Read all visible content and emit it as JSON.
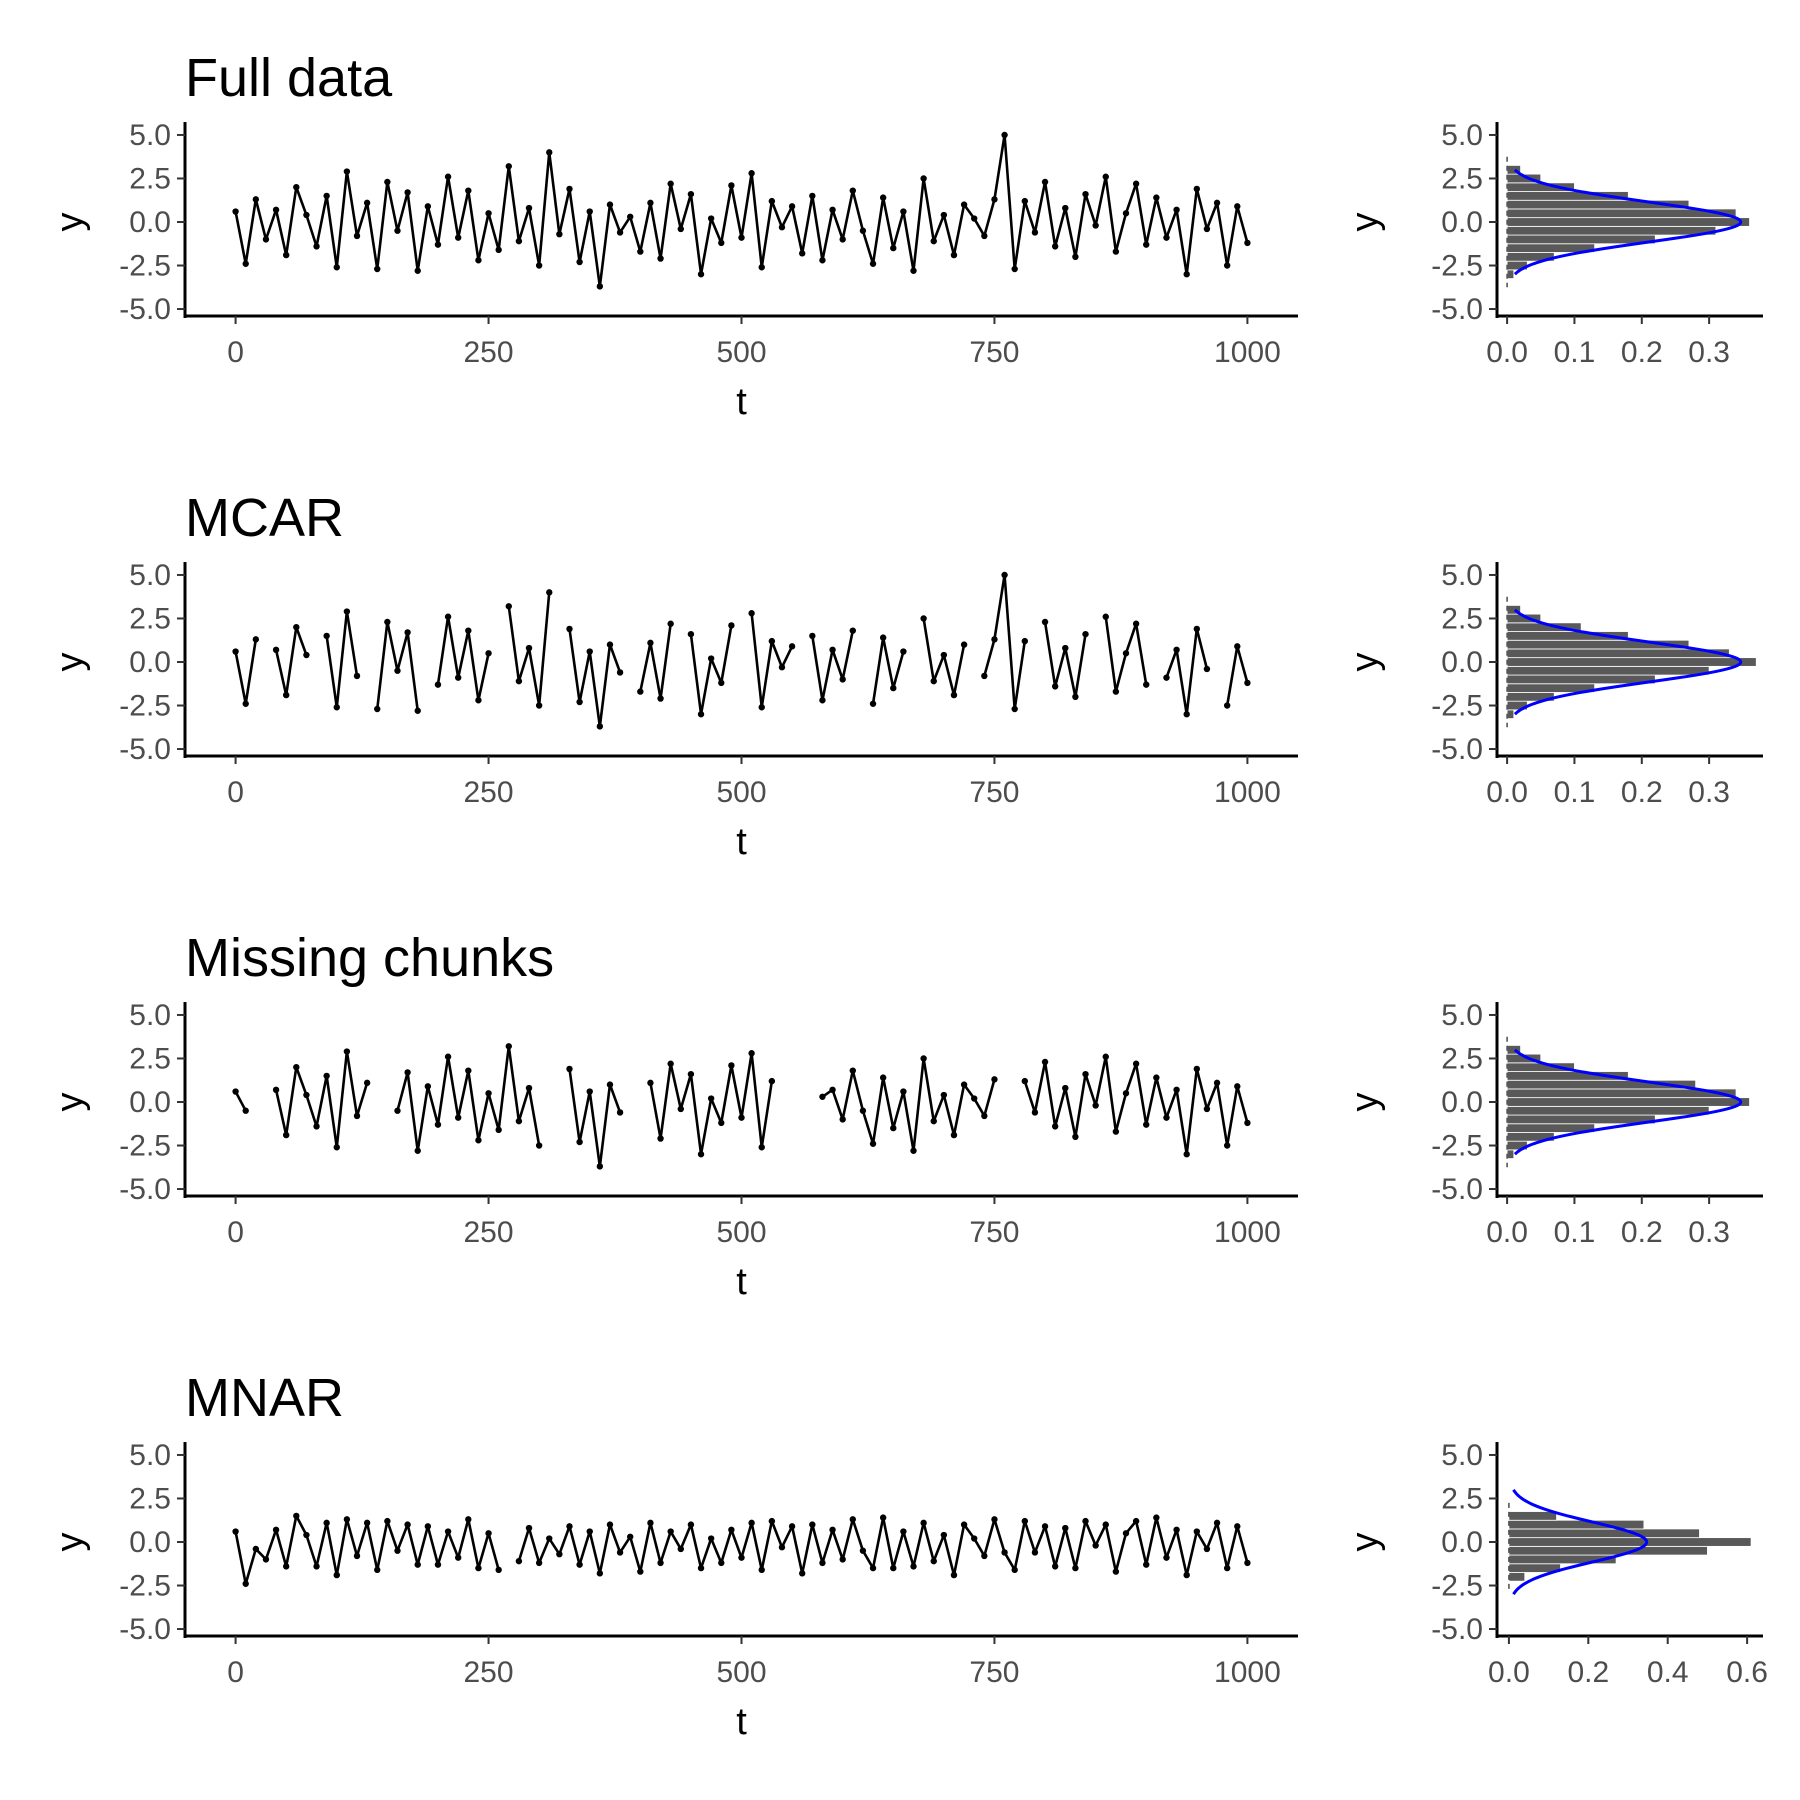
{
  "chart_data": [
    {
      "type": "line",
      "title": "Full data",
      "xlabel": "t",
      "ylabel": "y",
      "xlim": [
        -50,
        1050
      ],
      "ylim": [
        -5.4,
        5.4
      ],
      "x_ticks": [
        "0",
        "250",
        "500",
        "750",
        "1000"
      ],
      "y_ticks": [
        "5.0",
        "2.5",
        "0.0",
        "-2.5",
        "-5.0"
      ],
      "series": [
        {
          "x": [
            0,
            10,
            20,
            30,
            40,
            50,
            60,
            70,
            80,
            90,
            100,
            110,
            120,
            130,
            140,
            150,
            160,
            170,
            180,
            190,
            200,
            210,
            220,
            230,
            240,
            250,
            260,
            270,
            280,
            290,
            300,
            310,
            320,
            330,
            340,
            350,
            360,
            370,
            380,
            390,
            400,
            410,
            420,
            430,
            440,
            450,
            460,
            470,
            480,
            490,
            500,
            510,
            520,
            530,
            540,
            550,
            560,
            570,
            580,
            590,
            600,
            610,
            620,
            630,
            640,
            650,
            660,
            670,
            680,
            690,
            700,
            710,
            720,
            730,
            740,
            750,
            760,
            770,
            780,
            790,
            800,
            810,
            820,
            830,
            840,
            850,
            860,
            870,
            880,
            890,
            900,
            910,
            920,
            930,
            940,
            950,
            960,
            970,
            980,
            990,
            1000
          ],
          "y": [
            0.6,
            -2.4,
            1.3,
            -1.0,
            0.7,
            -1.9,
            2.0,
            0.4,
            -1.4,
            1.5,
            -2.6,
            2.9,
            -0.8,
            1.1,
            -2.7,
            2.3,
            -0.5,
            1.7,
            -2.8,
            0.9,
            -1.3,
            2.6,
            -0.9,
            1.8,
            -2.2,
            0.5,
            -1.6,
            3.2,
            -1.1,
            0.8,
            -2.5,
            4.0,
            -0.7,
            1.9,
            -2.3,
            0.6,
            -3.7,
            1.0,
            -0.6,
            0.3,
            -1.7,
            1.1,
            -2.1,
            2.2,
            -0.4,
            1.6,
            -3.0,
            0.2,
            -1.2,
            2.1,
            -0.9,
            2.8,
            -2.6,
            1.2,
            -0.3,
            0.9,
            -1.8,
            1.5,
            -2.2,
            0.7,
            -1.0,
            1.8,
            -0.5,
            -2.4,
            1.4,
            -1.5,
            0.6,
            -2.8,
            2.5,
            -1.1,
            0.4,
            -1.9,
            1.0,
            0.2,
            -0.8,
            1.3,
            5.0,
            -2.7,
            1.2,
            -0.6,
            2.3,
            -1.4,
            0.8,
            -2.0,
            1.6,
            -0.2,
            2.6,
            -1.7,
            0.5,
            2.2,
            -1.3,
            1.4,
            -0.9,
            0.7,
            -3.0,
            1.9,
            -0.4,
            1.1,
            -2.5,
            0.9,
            -1.2
          ]
        }
      ]
    },
    {
      "type": "histogram",
      "xlabel": "",
      "ylabel": "y",
      "xlim": [
        -0.015,
        0.38
      ],
      "ylim": [
        -5.4,
        5.4
      ],
      "x_ticks": [
        "0.0",
        "0.1",
        "0.2",
        "0.3"
      ],
      "y_ticks": [
        "5.0",
        "2.5",
        "0.0",
        "-2.5",
        "-5.0"
      ],
      "bins": [
        -3.25,
        -2.75,
        -2.25,
        -1.75,
        -1.25,
        -0.75,
        -0.25,
        0.25,
        0.75,
        1.25,
        1.75,
        2.25,
        2.75,
        3.25
      ],
      "density": [
        0.01,
        0.03,
        0.07,
        0.13,
        0.22,
        0.31,
        0.36,
        0.34,
        0.27,
        0.18,
        0.1,
        0.05,
        0.02
      ],
      "normal_curve": {
        "mean": 0.0,
        "sd": 1.15
      }
    },
    {
      "type": "line",
      "title": "MCAR",
      "xlabel": "t",
      "ylabel": "y",
      "xlim": [
        -50,
        1050
      ],
      "ylim": [
        -5.4,
        5.4
      ],
      "x_ticks": [
        "0",
        "250",
        "500",
        "750",
        "1000"
      ],
      "y_ticks": [
        "5.0",
        "2.5",
        "0.0",
        "-2.5",
        "-5.0"
      ],
      "series": [
        {
          "x": [
            0,
            10,
            20,
            30,
            40,
            50,
            60,
            70,
            80,
            90,
            100,
            110,
            120,
            130,
            140,
            150,
            160,
            170,
            180,
            190,
            200,
            210,
            220,
            230,
            240,
            250,
            260,
            270,
            280,
            290,
            300,
            310,
            320,
            330,
            340,
            350,
            360,
            370,
            380,
            390,
            400,
            410,
            420,
            430,
            440,
            450,
            460,
            470,
            480,
            490,
            500,
            510,
            520,
            530,
            540,
            550,
            560,
            570,
            580,
            590,
            600,
            610,
            620,
            630,
            640,
            650,
            660,
            670,
            680,
            690,
            700,
            710,
            720,
            730,
            740,
            750,
            760,
            770,
            780,
            790,
            800,
            810,
            820,
            830,
            840,
            850,
            860,
            870,
            880,
            890,
            900,
            910,
            920,
            930,
            940,
            950,
            960,
            970,
            980,
            990,
            1000
          ],
          "y": [
            0.6,
            -2.4,
            1.3,
            null,
            0.7,
            -1.9,
            2.0,
            0.4,
            null,
            1.5,
            -2.6,
            2.9,
            -0.8,
            null,
            -2.7,
            2.3,
            -0.5,
            1.7,
            -2.8,
            null,
            -1.3,
            2.6,
            -0.9,
            1.8,
            -2.2,
            0.5,
            null,
            3.2,
            -1.1,
            0.8,
            -2.5,
            4.0,
            null,
            1.9,
            -2.3,
            0.6,
            -3.7,
            1.0,
            -0.6,
            null,
            -1.7,
            1.1,
            -2.1,
            2.2,
            null,
            1.6,
            -3.0,
            0.2,
            -1.2,
            2.1,
            null,
            2.8,
            -2.6,
            1.2,
            -0.3,
            0.9,
            null,
            1.5,
            -2.2,
            0.7,
            -1.0,
            1.8,
            null,
            -2.4,
            1.4,
            -1.5,
            0.6,
            null,
            2.5,
            -1.1,
            0.4,
            -1.9,
            1.0,
            null,
            -0.8,
            1.3,
            5.0,
            -2.7,
            1.2,
            null,
            2.3,
            -1.4,
            0.8,
            -2.0,
            1.6,
            null,
            2.6,
            -1.7,
            0.5,
            2.2,
            -1.3,
            null,
            -0.9,
            0.7,
            -3.0,
            1.9,
            -0.4,
            null,
            -2.5,
            0.9,
            -1.2
          ]
        }
      ]
    },
    {
      "type": "histogram",
      "xlabel": "",
      "ylabel": "y",
      "xlim": [
        -0.015,
        0.38
      ],
      "ylim": [
        -5.4,
        5.4
      ],
      "x_ticks": [
        "0.0",
        "0.1",
        "0.2",
        "0.3"
      ],
      "y_ticks": [
        "5.0",
        "2.5",
        "0.0",
        "-2.5",
        "-5.0"
      ],
      "bins": [
        -3.25,
        -2.75,
        -2.25,
        -1.75,
        -1.25,
        -0.75,
        -0.25,
        0.25,
        0.75,
        1.25,
        1.75,
        2.25,
        2.75,
        3.25
      ],
      "density": [
        0.01,
        0.03,
        0.07,
        0.13,
        0.22,
        0.3,
        0.37,
        0.33,
        0.27,
        0.18,
        0.11,
        0.05,
        0.02
      ],
      "normal_curve": {
        "mean": 0.0,
        "sd": 1.15
      }
    },
    {
      "type": "line",
      "title": "Missing chunks",
      "xlabel": "t",
      "ylabel": "y",
      "xlim": [
        -50,
        1050
      ],
      "ylim": [
        -5.4,
        5.4
      ],
      "x_ticks": [
        "0",
        "250",
        "500",
        "750",
        "1000"
      ],
      "y_ticks": [
        "5.0",
        "2.5",
        "0.0",
        "-2.5",
        "-5.0"
      ],
      "series": [
        {
          "x": [
            0,
            10,
            20,
            30,
            40,
            50,
            60,
            70,
            80,
            90,
            100,
            110,
            120,
            130,
            140,
            150,
            160,
            170,
            180,
            190,
            200,
            210,
            220,
            230,
            240,
            250,
            260,
            270,
            280,
            290,
            300,
            310,
            320,
            330,
            340,
            350,
            360,
            370,
            380,
            390,
            400,
            410,
            420,
            430,
            440,
            450,
            460,
            470,
            480,
            490,
            500,
            510,
            520,
            530,
            540,
            550,
            560,
            570,
            580,
            590,
            600,
            610,
            620,
            630,
            640,
            650,
            660,
            670,
            680,
            690,
            700,
            710,
            720,
            730,
            740,
            750,
            760,
            770,
            780,
            790,
            800,
            810,
            820,
            830,
            840,
            850,
            860,
            870,
            880,
            890,
            900,
            910,
            920,
            930,
            940,
            950,
            960,
            970,
            980,
            990,
            1000
          ],
          "y": [
            0.6,
            -0.5,
            null,
            null,
            0.7,
            -1.9,
            2.0,
            0.4,
            -1.4,
            1.5,
            -2.6,
            2.9,
            -0.8,
            1.1,
            null,
            null,
            -0.5,
            1.7,
            -2.8,
            0.9,
            -1.3,
            2.6,
            -0.9,
            1.8,
            -2.2,
            0.5,
            -1.6,
            3.2,
            -1.1,
            0.8,
            -2.5,
            null,
            null,
            1.9,
            -2.3,
            0.6,
            -3.7,
            1.0,
            -0.6,
            null,
            null,
            1.1,
            -2.1,
            2.2,
            -0.4,
            1.6,
            -3.0,
            0.2,
            -1.2,
            2.1,
            -0.9,
            2.8,
            -2.6,
            1.2,
            null,
            null,
            null,
            null,
            0.3,
            0.7,
            -1.0,
            1.8,
            -0.5,
            -2.4,
            1.4,
            -1.5,
            0.6,
            -2.8,
            2.5,
            -1.1,
            0.4,
            -1.9,
            1.0,
            0.2,
            -0.8,
            1.3,
            null,
            null,
            1.2,
            -0.6,
            2.3,
            -1.4,
            0.8,
            -2.0,
            1.6,
            -0.2,
            2.6,
            -1.7,
            0.5,
            2.2,
            -1.3,
            1.4,
            -0.9,
            0.7,
            -3.0,
            1.9,
            -0.4,
            1.1,
            -2.5,
            0.9,
            -1.2
          ]
        }
      ]
    },
    {
      "type": "histogram",
      "xlabel": "",
      "ylabel": "y",
      "xlim": [
        -0.015,
        0.38
      ],
      "ylim": [
        -5.4,
        5.4
      ],
      "x_ticks": [
        "0.0",
        "0.1",
        "0.2",
        "0.3"
      ],
      "y_ticks": [
        "5.0",
        "2.5",
        "0.0",
        "-2.5",
        "-5.0"
      ],
      "bins": [
        -3.25,
        -2.75,
        -2.25,
        -1.75,
        -1.25,
        -0.75,
        -0.25,
        0.25,
        0.75,
        1.25,
        1.75,
        2.25,
        2.75,
        3.25
      ],
      "density": [
        0.01,
        0.03,
        0.07,
        0.13,
        0.22,
        0.3,
        0.36,
        0.34,
        0.28,
        0.18,
        0.1,
        0.05,
        0.02
      ],
      "normal_curve": {
        "mean": 0.0,
        "sd": 1.15
      }
    },
    {
      "type": "line",
      "title": "MNAR",
      "xlabel": "t",
      "ylabel": "y",
      "xlim": [
        -50,
        1050
      ],
      "ylim": [
        -5.4,
        5.4
      ],
      "x_ticks": [
        "0",
        "250",
        "500",
        "750",
        "1000"
      ],
      "y_ticks": [
        "5.0",
        "2.5",
        "0.0",
        "-2.5",
        "-5.0"
      ],
      "series": [
        {
          "x": [
            0,
            10,
            20,
            30,
            40,
            50,
            60,
            70,
            80,
            90,
            100,
            110,
            120,
            130,
            140,
            150,
            160,
            170,
            180,
            190,
            200,
            210,
            220,
            230,
            240,
            250,
            260,
            270,
            280,
            290,
            300,
            310,
            320,
            330,
            340,
            350,
            360,
            370,
            380,
            390,
            400,
            410,
            420,
            430,
            440,
            450,
            460,
            470,
            480,
            490,
            500,
            510,
            520,
            530,
            540,
            550,
            560,
            570,
            580,
            590,
            600,
            610,
            620,
            630,
            640,
            650,
            660,
            670,
            680,
            690,
            700,
            710,
            720,
            730,
            740,
            750,
            760,
            770,
            780,
            790,
            800,
            810,
            820,
            830,
            840,
            850,
            860,
            870,
            880,
            890,
            900,
            910,
            920,
            930,
            940,
            950,
            960,
            970,
            980,
            990,
            1000
          ],
          "y": [
            0.6,
            -2.4,
            -0.4,
            -1.0,
            0.7,
            -1.4,
            1.5,
            0.4,
            -1.4,
            1.1,
            -1.9,
            1.3,
            -0.8,
            1.1,
            -1.6,
            1.2,
            -0.5,
            1.0,
            -1.3,
            0.9,
            -1.3,
            0.6,
            -0.9,
            1.3,
            -1.5,
            0.5,
            -1.6,
            null,
            -1.1,
            0.8,
            -1.2,
            0.2,
            -0.7,
            0.9,
            -1.3,
            0.6,
            -1.8,
            1.0,
            -0.6,
            0.3,
            -1.7,
            1.1,
            -1.2,
            0.6,
            -0.4,
            1.0,
            -1.5,
            0.2,
            -1.2,
            0.7,
            -0.9,
            1.1,
            -1.6,
            1.2,
            -0.3,
            0.9,
            -1.8,
            1.0,
            -1.2,
            0.7,
            -1.0,
            1.3,
            -0.5,
            -1.5,
            1.4,
            -1.5,
            0.6,
            -1.4,
            1.1,
            -1.1,
            0.4,
            -1.9,
            1.0,
            0.2,
            -0.8,
            1.3,
            -0.6,
            -1.6,
            1.2,
            -0.6,
            0.9,
            -1.4,
            0.8,
            -1.5,
            1.2,
            -0.2,
            1.0,
            -1.7,
            0.5,
            1.2,
            -1.3,
            1.4,
            -0.9,
            0.7,
            -1.9,
            0.6,
            -0.4,
            1.1,
            -1.5,
            0.9,
            -1.2
          ]
        }
      ]
    },
    {
      "type": "histogram",
      "xlabel": "",
      "ylabel": "y",
      "xlim": [
        -0.03,
        0.64
      ],
      "ylim": [
        -5.4,
        5.4
      ],
      "x_ticks": [
        "0.0",
        "0.2",
        "0.4",
        "0.6"
      ],
      "y_ticks": [
        "5.0",
        "2.5",
        "0.0",
        "-2.5",
        "-5.0"
      ],
      "bins": [
        -2.25,
        -1.75,
        -1.25,
        -0.75,
        -0.25,
        0.25,
        0.75,
        1.25,
        1.75
      ],
      "density": [
        0.04,
        0.13,
        0.27,
        0.5,
        0.61,
        0.48,
        0.34,
        0.12
      ],
      "normal_curve": {
        "mean": 0.0,
        "sd": 1.15
      }
    }
  ],
  "style": {
    "series_color": "#000000",
    "bar_color": "#595959",
    "curve_color": "#0000ff",
    "tick_color": "#4d4d4d",
    "zero_line_color": "#555555"
  }
}
